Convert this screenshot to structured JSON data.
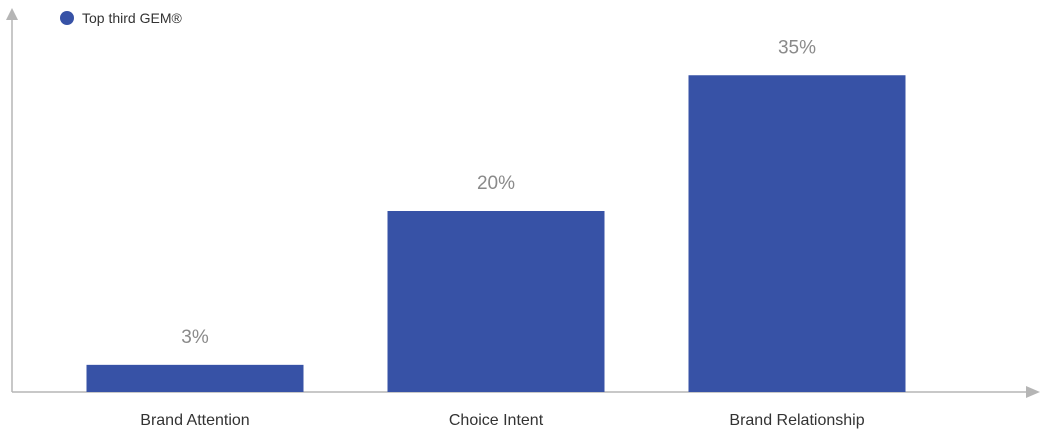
{
  "chart_data": {
    "type": "bar",
    "categories": [
      "Brand Attention",
      "Choice Intent",
      "Brand Relationship"
    ],
    "series": [
      {
        "name": "Top third GEM®",
        "values": [
          3,
          20,
          35
        ]
      }
    ],
    "value_labels": [
      "3%",
      "20%",
      "35%"
    ],
    "title": "",
    "xlabel": "",
    "ylabel": "",
    "ylim": [
      0,
      40
    ],
    "grid": false,
    "legend_position": "top-left"
  },
  "colors": {
    "bar": "#3752a6",
    "axis": "#b5b5b5",
    "value_label": "#8a8a8a",
    "category_label": "#333333"
  }
}
